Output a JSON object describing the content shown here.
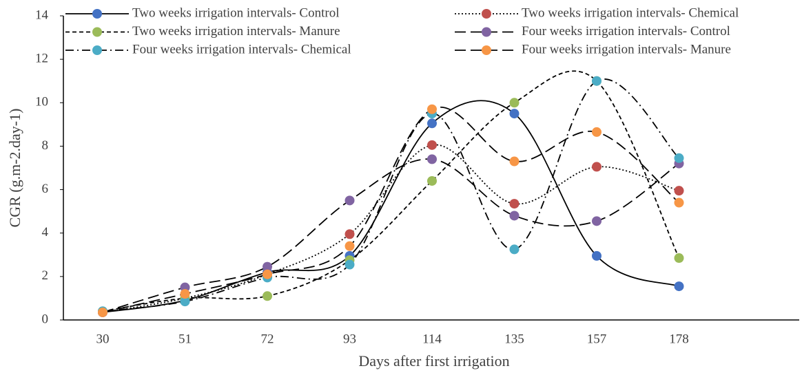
{
  "chart_data": {
    "type": "line",
    "x_label": "Days after first irrigation",
    "y_label": "CGR (g.m-2.day-1)",
    "categories": [
      "30",
      "51",
      "72",
      "93",
      "114",
      "135",
      "157",
      "178"
    ],
    "ylim": [
      0,
      14
    ],
    "yticks": [
      0,
      2,
      4,
      6,
      8,
      10,
      12,
      14
    ],
    "smooth": true,
    "line_color": "#000000",
    "series": [
      {
        "name": "Two weeks irrigation intervals- Control",
        "color": "#4472c4",
        "dash": "solid",
        "values": [
          0.35,
          0.9,
          2.2,
          2.95,
          9.05,
          9.5,
          2.95,
          1.55
        ]
      },
      {
        "name": "Two weeks irrigation intervals- Chemical",
        "color": "#c0504d",
        "dash": "dotted",
        "values": [
          0.35,
          1.0,
          2.1,
          3.95,
          8.05,
          5.35,
          7.05,
          5.95
        ]
      },
      {
        "name": "Two weeks irrigation intervals- Manure",
        "color": "#9bbb59",
        "dash": "short-dash",
        "values": [
          0.4,
          1.0,
          1.1,
          2.75,
          6.4,
          10.0,
          11.0,
          2.85
        ]
      },
      {
        "name": "Four weeks irrigation intervals- Control",
        "color": "#8064a2",
        "dash": "long-dash",
        "values": [
          0.35,
          1.5,
          2.45,
          5.5,
          7.4,
          4.8,
          4.55,
          7.2
        ]
      },
      {
        "name": "Four weeks irrigation intervals- Chemical",
        "color": "#4bacc6",
        "dash": "dash-dot",
        "values": [
          0.4,
          0.85,
          1.95,
          2.55,
          9.5,
          3.25,
          11.0,
          7.45
        ]
      },
      {
        "name": "Four weeks irrigation intervals- Manure",
        "color": "#f79646",
        "dash": "long-dash",
        "values": [
          0.35,
          1.2,
          2.1,
          3.4,
          9.7,
          7.3,
          8.65,
          5.4
        ]
      }
    ]
  }
}
